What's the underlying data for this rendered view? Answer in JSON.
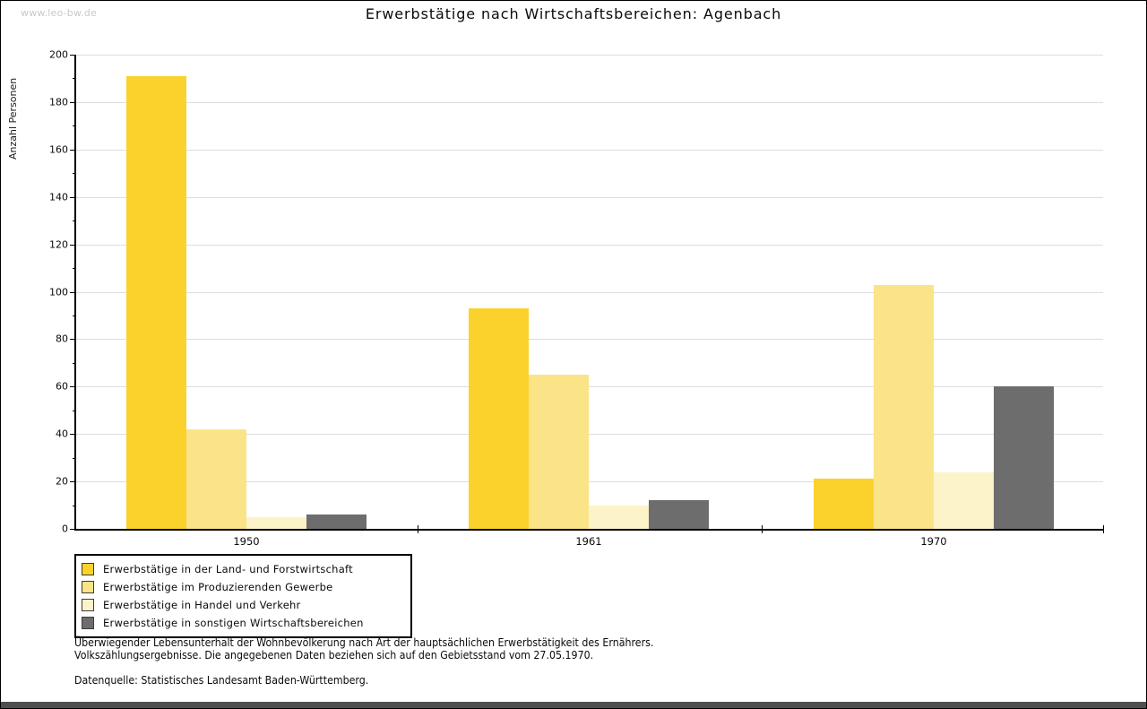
{
  "watermark": "www.leo-bw.de",
  "title": "Erwerbstätige nach Wirtschaftsbereichen: Agenbach",
  "y_axis_title": "Anzahl Personen",
  "footnotes": {
    "line1": "Überwiegender Lebensunterhalt der Wohnbevölkerung nach Art der hauptsächlichen Erwerbstätigkeit des Ernährers.",
    "line2": "Volkszählungsergebnisse. Die angegebenen Daten beziehen sich auf den Gebietsstand vom 27.05.1970.",
    "source": "Datenquelle: Statistisches Landesamt Baden-Württemberg."
  },
  "colors": {
    "grid": "#dddddd",
    "axis": "#000000",
    "watermark": "#c9c9c9",
    "bottom_bar": "#4f4f4f",
    "swatch_border": "#3c3c3c"
  },
  "chart_data": {
    "type": "bar",
    "title": "Erwerbstätige nach Wirtschaftsbereichen: Agenbach",
    "categories": [
      "1950",
      "1961",
      "1970"
    ],
    "series": [
      {
        "name": "Erwerbstätige in der Land- und Forstwirtschaft",
        "color": "#fbd22c",
        "values": [
          191,
          93,
          21
        ]
      },
      {
        "name": "Erwerbstätige im Produzierenden Gewerbe",
        "color": "#fbe388",
        "values": [
          42,
          65,
          103
        ]
      },
      {
        "name": "Erwerbstätige in Handel und Verkehr",
        "color": "#fcf3c8",
        "values": [
          5,
          10,
          24
        ]
      },
      {
        "name": "Erwerbstätige in sonstigen Wirtschaftsbereichen",
        "color": "#6d6d6d",
        "values": [
          6,
          12,
          60
        ]
      }
    ],
    "ylabel": "Anzahl Personen",
    "xlabel": "",
    "ylim": [
      0,
      200
    ],
    "ytick_step": 20,
    "minor_tick_step": 10,
    "grid": "horizontal-major-only",
    "legend_position": "bottom-left"
  }
}
